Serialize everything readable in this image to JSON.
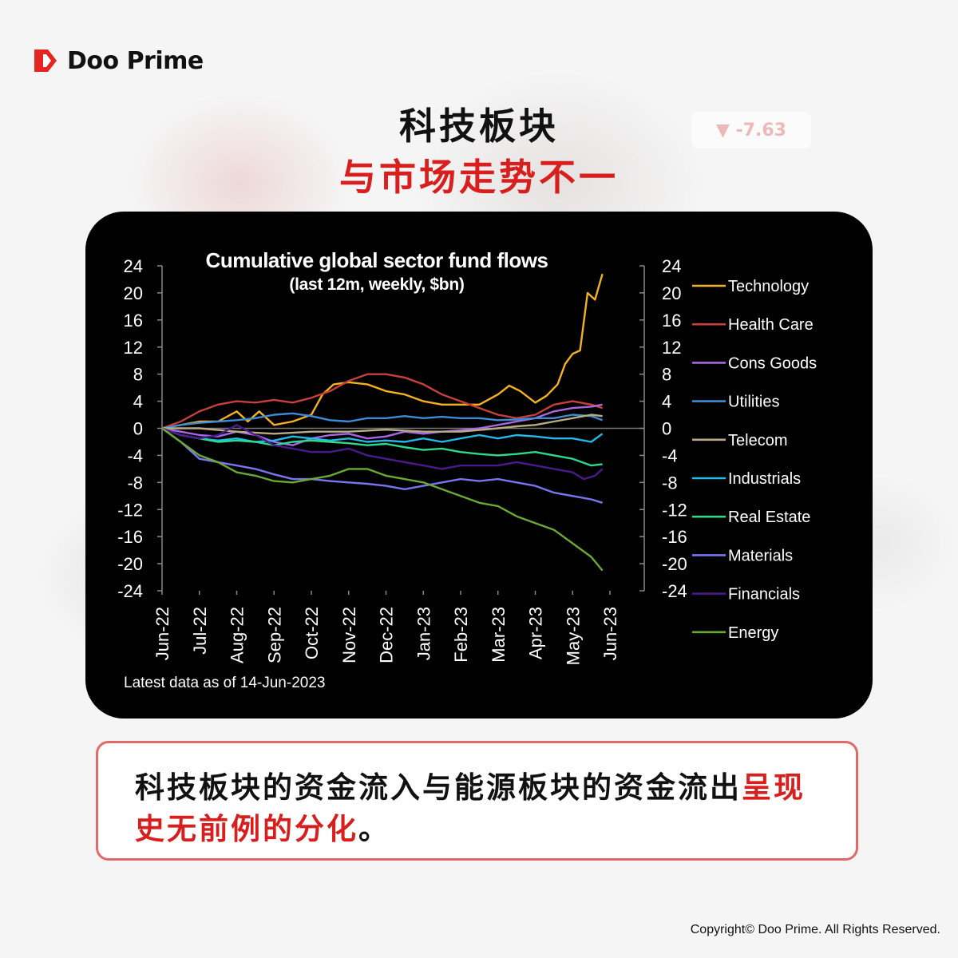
{
  "brand": {
    "name": "Doo Prime",
    "logo_color": "#e52521"
  },
  "ghost_ticker": "▼ -7.63",
  "headline": {
    "line1": "科技板块",
    "line2": "与市场走势不一",
    "line2_color": "#d91e1e"
  },
  "caption": {
    "text_main": "科技板块的资金流入与能源板块的资金流出",
    "text_highlight": "呈现史无前例的分化",
    "text_end": "。",
    "highlight_color": "#d91e1e"
  },
  "copyright": "Copyright© Doo Prime. All Rights Reserved.",
  "chart_data": {
    "type": "line",
    "title": "Cumulative global sector fund flows",
    "subtitle": "(last 12m, weekly, $bn)",
    "note": "Latest data as of 14-Jun-2023",
    "ylim": [
      -24,
      24
    ],
    "yticks": [
      24,
      20,
      16,
      12,
      8,
      4,
      0,
      -4,
      -8,
      -12,
      -16,
      -20,
      -24
    ],
    "xticks": [
      "Jun-22",
      "Jul-22",
      "Aug-22",
      "Sep-22",
      "Oct-22",
      "Nov-22",
      "Dec-22",
      "Jan-23",
      "Feb-23",
      "Mar-23",
      "Apr-23",
      "May-23",
      "Jun-23"
    ],
    "grid": false,
    "legend_position": "right",
    "series": [
      {
        "name": "Technology",
        "color": "#f5b21e",
        "points": [
          [
            0,
            0
          ],
          [
            0.5,
            0.5
          ],
          [
            1,
            1
          ],
          [
            1.5,
            1
          ],
          [
            2,
            2.5
          ],
          [
            2.3,
            1
          ],
          [
            2.6,
            2.5
          ],
          [
            3,
            0.5
          ],
          [
            3.5,
            1
          ],
          [
            4,
            2
          ],
          [
            4.3,
            5
          ],
          [
            4.6,
            6.5
          ],
          [
            5,
            6.8
          ],
          [
            5.5,
            6.5
          ],
          [
            6,
            5.5
          ],
          [
            6.5,
            5
          ],
          [
            7,
            4
          ],
          [
            7.5,
            3.5
          ],
          [
            8,
            3.5
          ],
          [
            8.5,
            3.5
          ],
          [
            9,
            5
          ],
          [
            9.3,
            6.3
          ],
          [
            9.6,
            5.5
          ],
          [
            10,
            3.8
          ],
          [
            10.3,
            4.8
          ],
          [
            10.6,
            6.5
          ],
          [
            10.8,
            9.5
          ],
          [
            11,
            11
          ],
          [
            11.2,
            11.5
          ],
          [
            11.4,
            20
          ],
          [
            11.6,
            19
          ],
          [
            11.8,
            22.8
          ]
        ]
      },
      {
        "name": "Health Care",
        "color": "#c7403a",
        "points": [
          [
            0,
            0
          ],
          [
            0.5,
            1
          ],
          [
            1,
            2.5
          ],
          [
            1.5,
            3.5
          ],
          [
            2,
            4
          ],
          [
            2.5,
            3.8
          ],
          [
            3,
            4.2
          ],
          [
            3.5,
            3.8
          ],
          [
            4,
            4.5
          ],
          [
            4.5,
            5.5
          ],
          [
            5,
            7
          ],
          [
            5.5,
            8
          ],
          [
            6,
            8
          ],
          [
            6.5,
            7.5
          ],
          [
            7,
            6.5
          ],
          [
            7.5,
            5
          ],
          [
            8,
            4
          ],
          [
            8.5,
            3
          ],
          [
            9,
            2
          ],
          [
            9.5,
            1.5
          ],
          [
            10,
            2
          ],
          [
            10.5,
            3.5
          ],
          [
            11,
            4
          ],
          [
            11.5,
            3.5
          ],
          [
            11.8,
            3
          ]
        ]
      },
      {
        "name": "Cons Goods",
        "color": "#a667e0",
        "points": [
          [
            0,
            0
          ],
          [
            0.5,
            -0.5
          ],
          [
            1,
            -1
          ],
          [
            1.5,
            -1.2
          ],
          [
            2,
            -0.5
          ],
          [
            2.5,
            -1
          ],
          [
            3,
            -2
          ],
          [
            3.5,
            -2.5
          ],
          [
            4,
            -1.5
          ],
          [
            4.5,
            -1
          ],
          [
            5,
            -0.8
          ],
          [
            5.5,
            -1.5
          ],
          [
            6,
            -1.2
          ],
          [
            6.5,
            -0.5
          ],
          [
            7,
            -0.8
          ],
          [
            7.5,
            -0.5
          ],
          [
            8,
            -0.3
          ],
          [
            8.5,
            0
          ],
          [
            9,
            0.5
          ],
          [
            9.5,
            1
          ],
          [
            10,
            1.5
          ],
          [
            10.5,
            2.5
          ],
          [
            11,
            3
          ],
          [
            11.5,
            3.2
          ],
          [
            11.8,
            3.5
          ]
        ]
      },
      {
        "name": "Utilities",
        "color": "#3d8ad6",
        "points": [
          [
            0,
            0
          ],
          [
            0.5,
            0.5
          ],
          [
            1,
            0.8
          ],
          [
            1.5,
            1
          ],
          [
            2,
            1.2
          ],
          [
            2.5,
            1.5
          ],
          [
            3,
            2
          ],
          [
            3.5,
            2.2
          ],
          [
            4,
            1.8
          ],
          [
            4.5,
            1.2
          ],
          [
            5,
            1
          ],
          [
            5.5,
            1.5
          ],
          [
            6,
            1.5
          ],
          [
            6.5,
            1.8
          ],
          [
            7,
            1.5
          ],
          [
            7.5,
            1.7
          ],
          [
            8,
            1.5
          ],
          [
            8.5,
            1.5
          ],
          [
            9,
            1.2
          ],
          [
            9.5,
            1.3
          ],
          [
            10,
            1.5
          ],
          [
            10.5,
            1.5
          ],
          [
            11,
            2
          ],
          [
            11.5,
            1.8
          ],
          [
            11.8,
            1.2
          ]
        ]
      },
      {
        "name": "Telecom",
        "color": "#b8ac86",
        "points": [
          [
            0,
            0
          ],
          [
            1,
            0
          ],
          [
            2,
            -0.5
          ],
          [
            3,
            -0.8
          ],
          [
            4,
            -0.5
          ],
          [
            5,
            -0.5
          ],
          [
            6,
            -0.2
          ],
          [
            7,
            -0.5
          ],
          [
            8,
            -0.5
          ],
          [
            9,
            0
          ],
          [
            9.5,
            0.3
          ],
          [
            10,
            0.5
          ],
          [
            10.5,
            1
          ],
          [
            11,
            1.5
          ],
          [
            11.5,
            2
          ],
          [
            11.8,
            1.8
          ]
        ]
      },
      {
        "name": "Industrials",
        "color": "#24b9e8",
        "points": [
          [
            0,
            0
          ],
          [
            0.5,
            -1
          ],
          [
            1,
            -1.5
          ],
          [
            1.5,
            -1.8
          ],
          [
            2,
            -1.5
          ],
          [
            2.5,
            -2
          ],
          [
            3,
            -1.8
          ],
          [
            3.5,
            -1.2
          ],
          [
            4,
            -1.5
          ],
          [
            4.5,
            -1.8
          ],
          [
            5,
            -1.5
          ],
          [
            5.5,
            -2
          ],
          [
            6,
            -1.8
          ],
          [
            6.5,
            -2
          ],
          [
            7,
            -1.5
          ],
          [
            7.5,
            -2
          ],
          [
            8,
            -1.5
          ],
          [
            8.5,
            -1
          ],
          [
            9,
            -1.5
          ],
          [
            9.5,
            -1
          ],
          [
            10,
            -1.2
          ],
          [
            10.5,
            -1.5
          ],
          [
            11,
            -1.5
          ],
          [
            11.5,
            -2
          ],
          [
            11.8,
            -0.8
          ]
        ]
      },
      {
        "name": "Real Estate",
        "color": "#2fd98b",
        "points": [
          [
            0,
            0
          ],
          [
            0.5,
            -1
          ],
          [
            1,
            -1.5
          ],
          [
            1.5,
            -2
          ],
          [
            2,
            -1.8
          ],
          [
            2.5,
            -2
          ],
          [
            3,
            -2.5
          ],
          [
            3.5,
            -2
          ],
          [
            4,
            -1.8
          ],
          [
            4.5,
            -2
          ],
          [
            5,
            -2.2
          ],
          [
            5.5,
            -2.5
          ],
          [
            6,
            -2.3
          ],
          [
            6.5,
            -2.8
          ],
          [
            7,
            -3.2
          ],
          [
            7.5,
            -3
          ],
          [
            8,
            -3.5
          ],
          [
            8.5,
            -3.8
          ],
          [
            9,
            -4
          ],
          [
            9.5,
            -3.8
          ],
          [
            10,
            -3.5
          ],
          [
            10.5,
            -4
          ],
          [
            11,
            -4.5
          ],
          [
            11.5,
            -5.5
          ],
          [
            11.8,
            -5.3
          ]
        ]
      },
      {
        "name": "Materials",
        "color": "#7b74f0",
        "points": [
          [
            0,
            0
          ],
          [
            0.5,
            -2
          ],
          [
            1,
            -4.5
          ],
          [
            1.5,
            -5
          ],
          [
            2,
            -5.5
          ],
          [
            2.5,
            -6
          ],
          [
            3,
            -6.8
          ],
          [
            3.5,
            -7.5
          ],
          [
            4,
            -7.5
          ],
          [
            4.5,
            -7.8
          ],
          [
            5,
            -8
          ],
          [
            5.5,
            -8.2
          ],
          [
            6,
            -8.5
          ],
          [
            6.5,
            -9
          ],
          [
            7,
            -8.5
          ],
          [
            7.5,
            -8
          ],
          [
            8,
            -7.5
          ],
          [
            8.5,
            -7.8
          ],
          [
            9,
            -7.5
          ],
          [
            9.5,
            -8
          ],
          [
            10,
            -8.5
          ],
          [
            10.5,
            -9.5
          ],
          [
            11,
            -10
          ],
          [
            11.5,
            -10.5
          ],
          [
            11.8,
            -11
          ]
        ]
      },
      {
        "name": "Financials",
        "color": "#4a1a8c",
        "points": [
          [
            0,
            0
          ],
          [
            0.5,
            -1
          ],
          [
            1,
            -1.5
          ],
          [
            1.5,
            -1
          ],
          [
            2,
            0.5
          ],
          [
            2.5,
            -1
          ],
          [
            3,
            -2.5
          ],
          [
            3.5,
            -3
          ],
          [
            4,
            -3.5
          ],
          [
            4.5,
            -3.5
          ],
          [
            5,
            -3
          ],
          [
            5.5,
            -4
          ],
          [
            6,
            -4.5
          ],
          [
            6.5,
            -5
          ],
          [
            7,
            -5.5
          ],
          [
            7.5,
            -6
          ],
          [
            8,
            -5.5
          ],
          [
            8.5,
            -5.5
          ],
          [
            9,
            -5.5
          ],
          [
            9.5,
            -5
          ],
          [
            10,
            -5.5
          ],
          [
            10.5,
            -6
          ],
          [
            11,
            -6.5
          ],
          [
            11.3,
            -7.5
          ],
          [
            11.6,
            -7
          ],
          [
            11.8,
            -6
          ]
        ]
      },
      {
        "name": "Energy",
        "color": "#6aaa34",
        "points": [
          [
            0,
            0
          ],
          [
            0.5,
            -2
          ],
          [
            1,
            -4
          ],
          [
            1.5,
            -5
          ],
          [
            2,
            -6.5
          ],
          [
            2.5,
            -7
          ],
          [
            3,
            -7.8
          ],
          [
            3.5,
            -8
          ],
          [
            4,
            -7.5
          ],
          [
            4.5,
            -7
          ],
          [
            5,
            -6
          ],
          [
            5.5,
            -6
          ],
          [
            6,
            -7
          ],
          [
            6.5,
            -7.5
          ],
          [
            7,
            -8
          ],
          [
            7.5,
            -9
          ],
          [
            8,
            -10
          ],
          [
            8.5,
            -11
          ],
          [
            9,
            -11.5
          ],
          [
            9.5,
            -13
          ],
          [
            10,
            -14
          ],
          [
            10.5,
            -15
          ],
          [
            11,
            -17
          ],
          [
            11.5,
            -19
          ],
          [
            11.8,
            -21
          ]
        ]
      }
    ]
  }
}
